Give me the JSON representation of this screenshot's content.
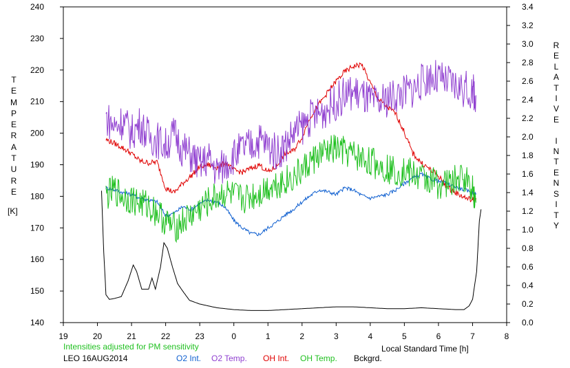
{
  "chart_data": {
    "type": "line",
    "left_axis": {
      "label": "TEMPERATURE",
      "unit": "[K]",
      "ylim": [
        140,
        240
      ],
      "ticks": [
        "140",
        "150",
        "160",
        "170",
        "180",
        "190",
        "200",
        "210",
        "220",
        "230",
        "240"
      ]
    },
    "right_axis": {
      "label": "RELATIVE INTENSITY",
      "ylim": [
        0.0,
        3.4
      ],
      "ticks": [
        "0.0",
        "0.2",
        "0.4",
        "0.6",
        "0.8",
        "1.0",
        "1.2",
        "1.4",
        "1.6",
        "1.8",
        "2.0",
        "2.2",
        "2.4",
        "2.6",
        "2.8",
        "3.0",
        "3.2",
        "3.4"
      ]
    },
    "x_axis": {
      "label": "Local Standard Time [h]",
      "xlim": [
        19,
        32
      ],
      "ticks": [
        "19",
        "20",
        "21",
        "22",
        "23",
        "0",
        "1",
        "2",
        "3",
        "4",
        "5",
        "6",
        "7",
        "8"
      ]
    },
    "note": "Intensities adjusted for PM sensitivity",
    "station_date": "LEO 16AUG2014",
    "series": [
      {
        "name": "O2 Int.",
        "color": "#1060d0",
        "axis": "right",
        "points": [
          [
            20.25,
            1.45
          ],
          [
            20.5,
            1.43
          ],
          [
            20.75,
            1.4
          ],
          [
            21.0,
            1.38
          ],
          [
            21.25,
            1.34
          ],
          [
            21.5,
            1.32
          ],
          [
            21.75,
            1.3
          ],
          [
            22.0,
            1.15
          ],
          [
            22.25,
            1.18
          ],
          [
            22.5,
            1.25
          ],
          [
            22.75,
            1.22
          ],
          [
            23.0,
            1.28
          ],
          [
            23.25,
            1.32
          ],
          [
            23.5,
            1.3
          ],
          [
            23.75,
            1.24
          ],
          [
            24.0,
            1.1
          ],
          [
            24.25,
            1.02
          ],
          [
            24.5,
            0.96
          ],
          [
            24.75,
            0.95
          ],
          [
            25.0,
            1.02
          ],
          [
            25.25,
            1.08
          ],
          [
            25.5,
            1.16
          ],
          [
            25.75,
            1.22
          ],
          [
            26.0,
            1.3
          ],
          [
            26.25,
            1.37
          ],
          [
            26.5,
            1.43
          ],
          [
            26.75,
            1.41
          ],
          [
            27.0,
            1.38
          ],
          [
            27.25,
            1.45
          ],
          [
            27.5,
            1.43
          ],
          [
            27.75,
            1.37
          ],
          [
            28.0,
            1.34
          ],
          [
            28.25,
            1.36
          ],
          [
            28.5,
            1.38
          ],
          [
            28.75,
            1.43
          ],
          [
            29.0,
            1.5
          ],
          [
            29.25,
            1.56
          ],
          [
            29.5,
            1.6
          ],
          [
            29.75,
            1.55
          ],
          [
            30.0,
            1.52
          ],
          [
            30.25,
            1.5
          ],
          [
            30.5,
            1.46
          ],
          [
            30.75,
            1.43
          ],
          [
            31.0,
            1.4
          ],
          [
            31.1,
            1.38
          ]
        ]
      },
      {
        "name": "O2 Temp.",
        "color": "#9040d0",
        "axis": "left",
        "points": [
          [
            20.25,
            205
          ],
          [
            20.5,
            202
          ],
          [
            20.75,
            204
          ],
          [
            21.0,
            200
          ],
          [
            21.25,
            203
          ],
          [
            21.5,
            199
          ],
          [
            21.75,
            198
          ],
          [
            22.0,
            196
          ],
          [
            22.25,
            200
          ],
          [
            22.5,
            195
          ],
          [
            22.75,
            193
          ],
          [
            23.0,
            190
          ],
          [
            23.25,
            192
          ],
          [
            23.5,
            188
          ],
          [
            23.75,
            190
          ],
          [
            24.0,
            193
          ],
          [
            24.25,
            195
          ],
          [
            24.5,
            196
          ],
          [
            24.75,
            198
          ],
          [
            25.0,
            196
          ],
          [
            25.25,
            194
          ],
          [
            25.5,
            196
          ],
          [
            25.75,
            200
          ],
          [
            26.0,
            202
          ],
          [
            26.25,
            205
          ],
          [
            26.5,
            206
          ],
          [
            26.75,
            208
          ],
          [
            27.0,
            210
          ],
          [
            27.25,
            212
          ],
          [
            27.5,
            213
          ],
          [
            27.75,
            212
          ],
          [
            28.0,
            210
          ],
          [
            28.25,
            209
          ],
          [
            28.5,
            211
          ],
          [
            28.75,
            212
          ],
          [
            29.0,
            213
          ],
          [
            29.25,
            214
          ],
          [
            29.5,
            216
          ],
          [
            29.75,
            218
          ],
          [
            30.0,
            217
          ],
          [
            30.25,
            216
          ],
          [
            30.5,
            215
          ],
          [
            30.75,
            214
          ],
          [
            31.0,
            213
          ],
          [
            31.1,
            212
          ]
        ]
      },
      {
        "name": "OH Int.",
        "color": "#e00000",
        "axis": "right",
        "points": [
          [
            20.25,
            1.97
          ],
          [
            20.5,
            1.93
          ],
          [
            20.75,
            1.88
          ],
          [
            21.0,
            1.82
          ],
          [
            21.25,
            1.74
          ],
          [
            21.5,
            1.72
          ],
          [
            21.75,
            1.73
          ],
          [
            22.0,
            1.45
          ],
          [
            22.25,
            1.4
          ],
          [
            22.5,
            1.5
          ],
          [
            22.75,
            1.58
          ],
          [
            23.0,
            1.68
          ],
          [
            23.25,
            1.7
          ],
          [
            23.5,
            1.67
          ],
          [
            23.75,
            1.72
          ],
          [
            24.0,
            1.64
          ],
          [
            24.25,
            1.62
          ],
          [
            24.5,
            1.66
          ],
          [
            24.75,
            1.7
          ],
          [
            25.0,
            1.62
          ],
          [
            25.25,
            1.68
          ],
          [
            25.5,
            1.82
          ],
          [
            25.75,
            1.85
          ],
          [
            26.0,
            2.0
          ],
          [
            26.25,
            2.22
          ],
          [
            26.5,
            2.35
          ],
          [
            26.75,
            2.48
          ],
          [
            27.0,
            2.6
          ],
          [
            27.25,
            2.7
          ],
          [
            27.5,
            2.76
          ],
          [
            27.75,
            2.78
          ],
          [
            28.0,
            2.58
          ],
          [
            28.25,
            2.4
          ],
          [
            28.5,
            2.32
          ],
          [
            28.75,
            2.25
          ],
          [
            29.0,
            2.05
          ],
          [
            29.25,
            1.82
          ],
          [
            29.5,
            1.72
          ],
          [
            29.75,
            1.65
          ],
          [
            30.0,
            1.58
          ],
          [
            30.25,
            1.46
          ],
          [
            30.5,
            1.4
          ],
          [
            30.75,
            1.35
          ],
          [
            31.0,
            1.32
          ],
          [
            31.1,
            1.34
          ]
        ]
      },
      {
        "name": "OH Temp.",
        "color": "#20c020",
        "axis": "left",
        "points": [
          [
            20.25,
            180
          ],
          [
            20.5,
            182
          ],
          [
            20.75,
            180
          ],
          [
            21.0,
            179
          ],
          [
            21.25,
            178
          ],
          [
            21.5,
            177
          ],
          [
            21.75,
            175
          ],
          [
            22.0,
            172
          ],
          [
            22.25,
            170
          ],
          [
            22.5,
            172
          ],
          [
            22.75,
            174
          ],
          [
            23.0,
            176
          ],
          [
            23.25,
            178
          ],
          [
            23.5,
            180
          ],
          [
            23.75,
            181
          ],
          [
            24.0,
            180
          ],
          [
            24.25,
            179
          ],
          [
            24.5,
            180
          ],
          [
            24.75,
            181
          ],
          [
            25.0,
            183
          ],
          [
            25.25,
            184
          ],
          [
            25.5,
            185
          ],
          [
            25.75,
            186
          ],
          [
            26.0,
            188
          ],
          [
            26.25,
            191
          ],
          [
            26.5,
            193
          ],
          [
            26.75,
            194
          ],
          [
            27.0,
            195
          ],
          [
            27.25,
            194
          ],
          [
            27.5,
            193
          ],
          [
            27.75,
            192
          ],
          [
            28.0,
            191
          ],
          [
            28.25,
            190
          ],
          [
            28.5,
            189
          ],
          [
            28.75,
            188
          ],
          [
            29.0,
            188
          ],
          [
            29.25,
            187
          ],
          [
            29.5,
            186
          ],
          [
            29.75,
            185
          ],
          [
            30.0,
            184
          ],
          [
            30.25,
            184
          ],
          [
            30.5,
            185
          ],
          [
            30.75,
            186
          ],
          [
            31.0,
            183
          ],
          [
            31.1,
            178
          ]
        ]
      },
      {
        "name": "Bckgrd.",
        "color": "#000000",
        "axis": "right",
        "points": [
          [
            20.12,
            1.42
          ],
          [
            20.18,
            0.8
          ],
          [
            20.25,
            0.3
          ],
          [
            20.35,
            0.25
          ],
          [
            20.5,
            0.26
          ],
          [
            20.7,
            0.28
          ],
          [
            20.9,
            0.45
          ],
          [
            21.05,
            0.62
          ],
          [
            21.15,
            0.55
          ],
          [
            21.3,
            0.36
          ],
          [
            21.5,
            0.36
          ],
          [
            21.6,
            0.48
          ],
          [
            21.7,
            0.36
          ],
          [
            21.85,
            0.6
          ],
          [
            21.95,
            0.86
          ],
          [
            22.05,
            0.8
          ],
          [
            22.2,
            0.6
          ],
          [
            22.35,
            0.42
          ],
          [
            22.5,
            0.34
          ],
          [
            22.7,
            0.24
          ],
          [
            23.0,
            0.2
          ],
          [
            23.5,
            0.16
          ],
          [
            24.0,
            0.14
          ],
          [
            24.5,
            0.13
          ],
          [
            25.0,
            0.13
          ],
          [
            25.5,
            0.14
          ],
          [
            26.0,
            0.15
          ],
          [
            26.5,
            0.16
          ],
          [
            27.0,
            0.17
          ],
          [
            27.5,
            0.17
          ],
          [
            28.0,
            0.16
          ],
          [
            28.5,
            0.15
          ],
          [
            29.0,
            0.15
          ],
          [
            29.5,
            0.16
          ],
          [
            30.0,
            0.15
          ],
          [
            30.5,
            0.14
          ],
          [
            30.75,
            0.14
          ],
          [
            30.9,
            0.18
          ],
          [
            31.0,
            0.25
          ],
          [
            31.12,
            0.55
          ],
          [
            31.2,
            1.1
          ],
          [
            31.25,
            1.22
          ]
        ]
      }
    ]
  }
}
